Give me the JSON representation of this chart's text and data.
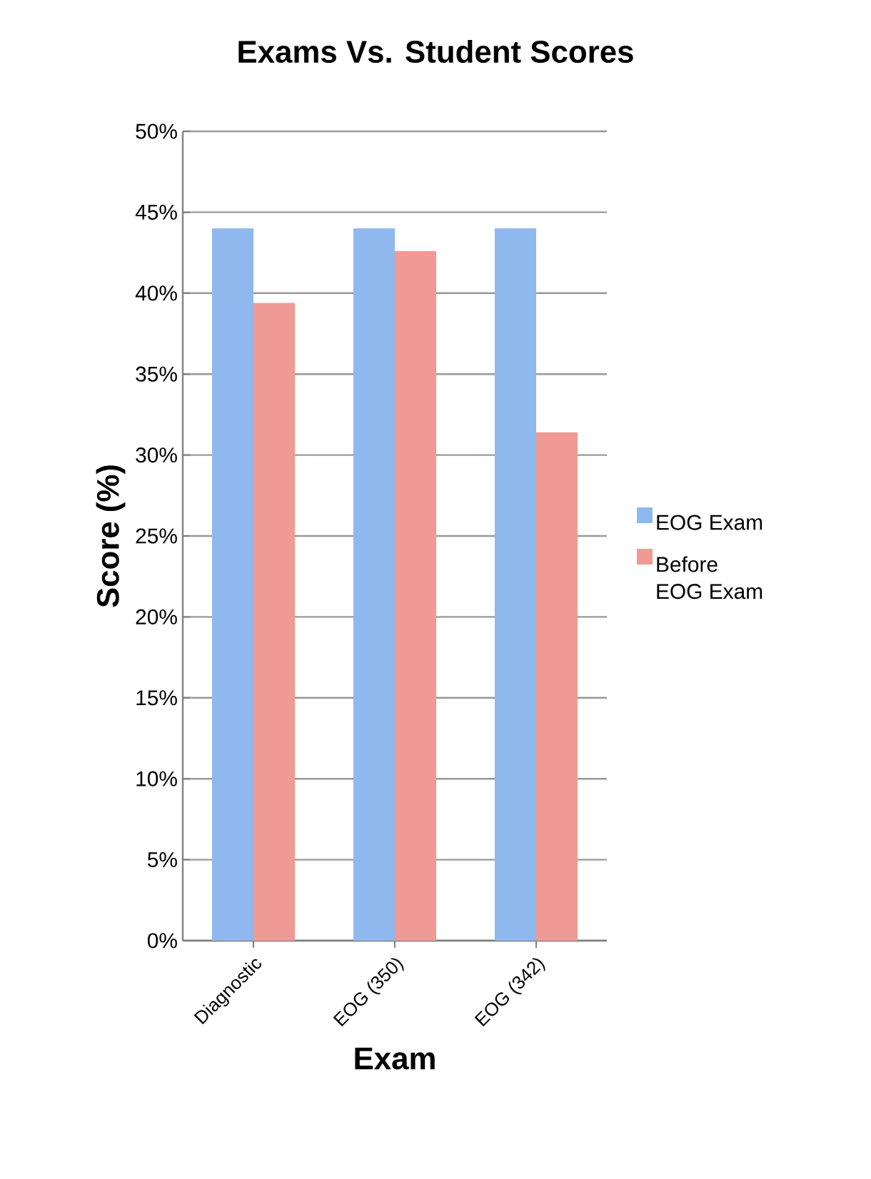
{
  "chart_data": {
    "type": "bar",
    "title": "Exams Vs. Student Scores",
    "xlabel": "Exam",
    "ylabel": "Score (%)",
    "categories": [
      "Diagnostic",
      "EOG (350)",
      "EOG (342)"
    ],
    "series": [
      {
        "name": "EOG Exam",
        "color": "#8fb8ee",
        "values": [
          44.0,
          44.0,
          44.0
        ]
      },
      {
        "name": "Before EOG Exam",
        "color": "#f09a95",
        "values": [
          39.4,
          42.6,
          31.4
        ]
      }
    ],
    "ylim": [
      0,
      50
    ],
    "yticks": [
      {
        "value": 0,
        "label": "0%"
      },
      {
        "value": 5,
        "label": "5%"
      },
      {
        "value": 10,
        "label": "10%"
      },
      {
        "value": 15,
        "label": "15%"
      },
      {
        "value": 20,
        "label": "20%"
      },
      {
        "value": 25,
        "label": "25%"
      },
      {
        "value": 30,
        "label": "30%"
      },
      {
        "value": 35,
        "label": "35%"
      },
      {
        "value": 40,
        "label": "40%"
      },
      {
        "value": 45,
        "label": "45%"
      },
      {
        "value": 50,
        "label": "50%"
      }
    ],
    "grid": "y",
    "legend": "right"
  }
}
